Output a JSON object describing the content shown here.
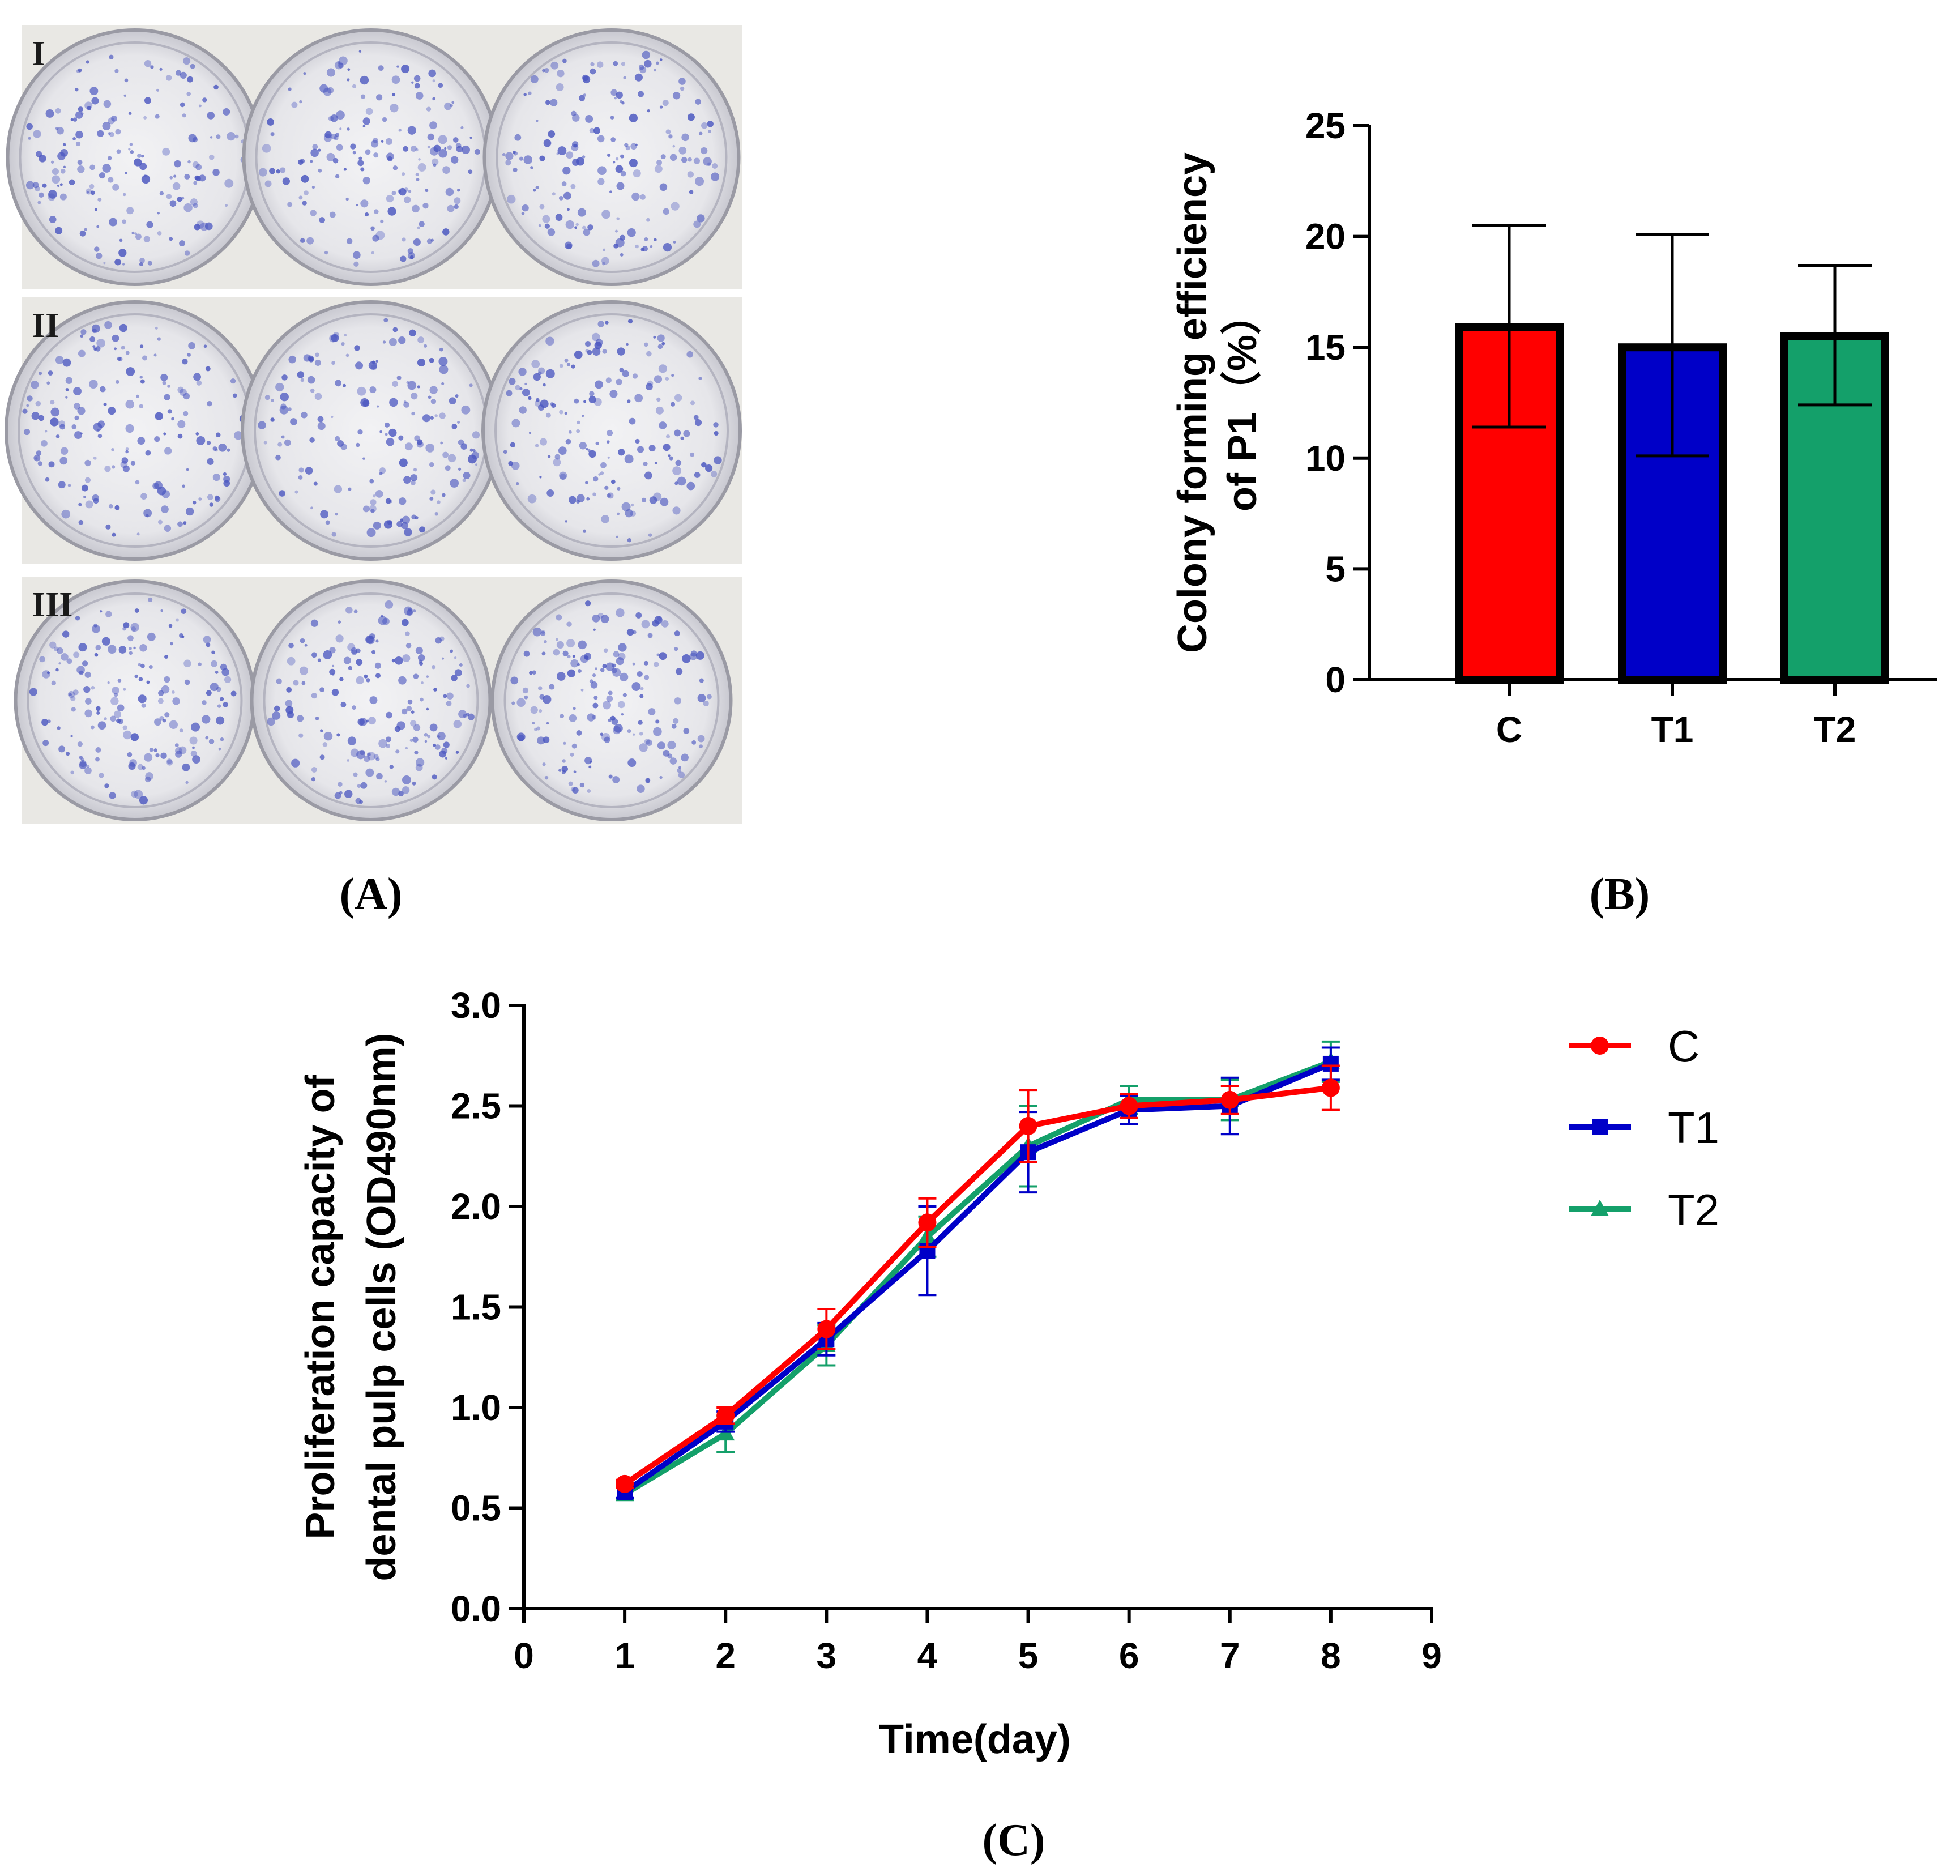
{
  "panel_a": {
    "caption": "(A)",
    "rows": [
      {
        "label": "I",
        "dish_count": 3
      },
      {
        "label": "II",
        "dish_count": 3
      },
      {
        "label": "III",
        "dish_count": 3
      }
    ]
  },
  "panel_b_caption": "(B)",
  "panel_c_caption": "(C)",
  "colors": {
    "C": "#ff0000",
    "T1": "#0000c8",
    "T2": "#14a06a",
    "stain": "#4a56c0"
  },
  "chart_data": [
    {
      "id": "B",
      "type": "bar",
      "title": "",
      "ylabel_lines": [
        "Colony forming efficiency",
        "of P1（%）"
      ],
      "xlabel": "",
      "categories": [
        "C",
        "T1",
        "T2"
      ],
      "values": [
        15.9,
        15.0,
        15.5
      ],
      "error": [
        [
          11.4,
          20.5
        ],
        [
          10.1,
          20.1
        ],
        [
          12.4,
          18.7
        ]
      ],
      "ylim": [
        0,
        25
      ],
      "yticks": [
        "0",
        "5",
        "10",
        "15",
        "20",
        "25"
      ]
    },
    {
      "id": "C",
      "type": "line",
      "title": "",
      "ylabel_lines": [
        "Proliferation capacity of",
        "dental pulp cells (OD490nm)"
      ],
      "xlabel": "Time(day)",
      "x": [
        1,
        2,
        3,
        4,
        5,
        6,
        7,
        8
      ],
      "xlim": [
        0,
        9
      ],
      "ylim": [
        0,
        3
      ],
      "xticks": [
        "0",
        "1",
        "2",
        "3",
        "4",
        "5",
        "6",
        "7",
        "8",
        "9"
      ],
      "yticks": [
        "0.0",
        "0.5",
        "1.0",
        "1.5",
        "2.0",
        "2.5",
        "3.0"
      ],
      "legend_position": "right",
      "series": [
        {
          "name": "C",
          "marker": "circle",
          "values": [
            0.62,
            0.96,
            1.39,
            1.92,
            2.4,
            2.5,
            2.53,
            2.59
          ],
          "err": [
            0.02,
            0.04,
            0.1,
            0.12,
            0.18,
            0.06,
            0.07,
            0.11
          ]
        },
        {
          "name": "T1",
          "marker": "square",
          "values": [
            0.58,
            0.93,
            1.34,
            1.78,
            2.27,
            2.48,
            2.5,
            2.71
          ],
          "err": [
            0.03,
            0.05,
            0.08,
            0.22,
            0.2,
            0.07,
            0.14,
            0.08
          ]
        },
        {
          "name": "T2",
          "marker": "triangle",
          "values": [
            0.57,
            0.87,
            1.31,
            1.85,
            2.3,
            2.53,
            2.53,
            2.72
          ],
          "err": [
            0.03,
            0.09,
            0.1,
            0.1,
            0.2,
            0.07,
            0.1,
            0.1
          ]
        }
      ]
    }
  ]
}
